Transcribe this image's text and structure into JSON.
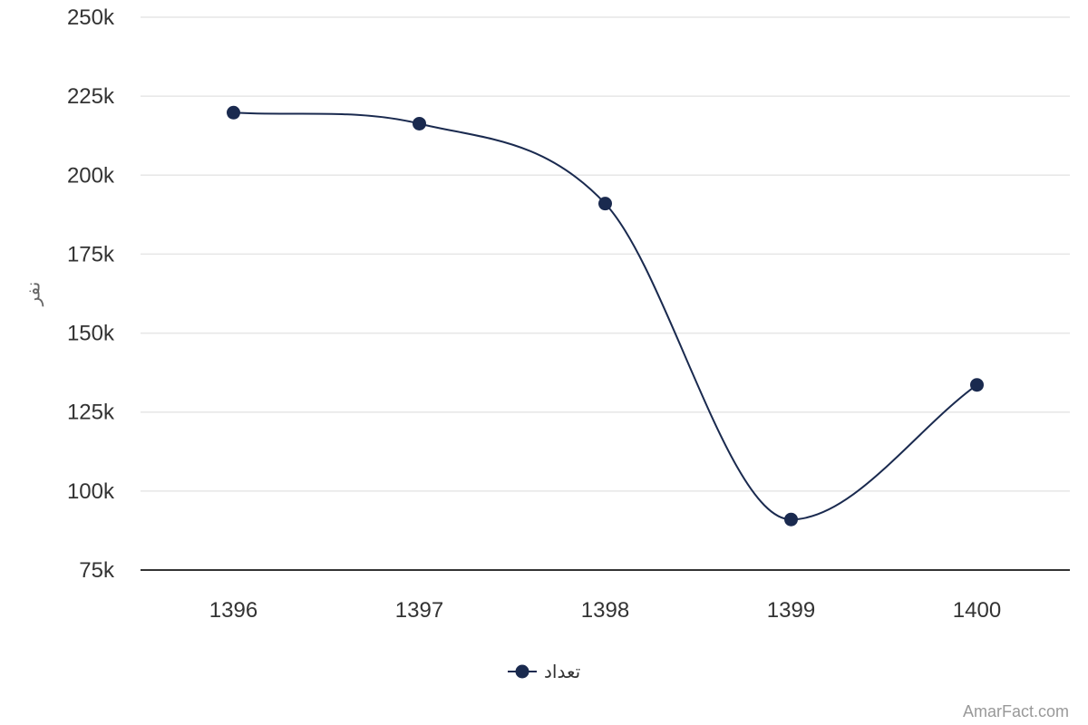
{
  "chart_data": {
    "type": "line",
    "title": "",
    "xlabel": "",
    "ylabel": "نفر",
    "categories": [
      "1396",
      "1397",
      "1398",
      "1399",
      "1400"
    ],
    "series": [
      {
        "name": "تعداد",
        "color": "#1a2a4f",
        "values": [
          219800,
          216300,
          191000,
          91000,
          133600
        ]
      }
    ],
    "ylim": [
      75000,
      250000
    ],
    "yticks": [
      75000,
      100000,
      125000,
      150000,
      175000,
      200000,
      225000,
      250000
    ],
    "ytick_labels": [
      "75k",
      "100k",
      "125k",
      "150k",
      "175k",
      "200k",
      "225k",
      "250k"
    ],
    "grid": true,
    "legend": "bottom-center",
    "smooth": true
  },
  "credit": "AmarFact.com",
  "colors": {
    "series": "#1a2a4f",
    "grid": "#e6e6e6",
    "axis": "#333333"
  }
}
